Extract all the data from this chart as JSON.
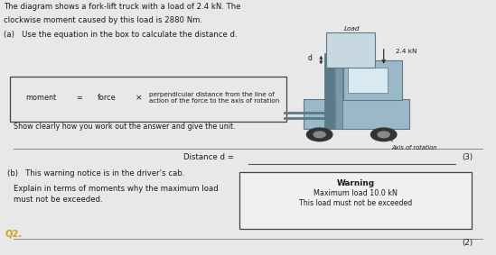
{
  "bg_color": "#e8e8e8",
  "text_color": "#1a1a1a",
  "title_line1": "The diagram shows a fork-lift truck with a load of 2.4 kN. The",
  "title_line2": "clockwise moment caused by this load is 2880 Nm.",
  "title_line3": "(a)   Use the equation in the box to calculate the distance d.",
  "eq_moment": "moment",
  "eq_equals": "=",
  "eq_force": "force",
  "eq_times": "×",
  "eq_rhs1": "perpendicular distance from the line of",
  "eq_rhs2": "action of the force to the axis of rotation",
  "show_clearly": "Show clearly how you work out the answer and give the unit.",
  "distance_label": "Distance d =",
  "marks_a": "(3)",
  "part_b1": "(b)   This warning notice is in the driver’s cab.",
  "part_b2": "Explain in terms of moments why the maximum load",
  "part_b3": "must not be exceeded.",
  "warning_title": "Warning",
  "warning_line1": "Maximum load 10.0 kN",
  "warning_line2": "This load must not be exceeded",
  "q2_label": "Q2.",
  "q2_color": "#d4a017",
  "marks_b": "(2)",
  "load_label": "Load",
  "load_kn": "2.4 kN",
  "axis_label": "Axis of rotation",
  "truck_color": "#9ab8c8",
  "truck_dark": "#5a7a8a",
  "wheel_color": "#333333",
  "load_box_color": "#c8d8e0"
}
